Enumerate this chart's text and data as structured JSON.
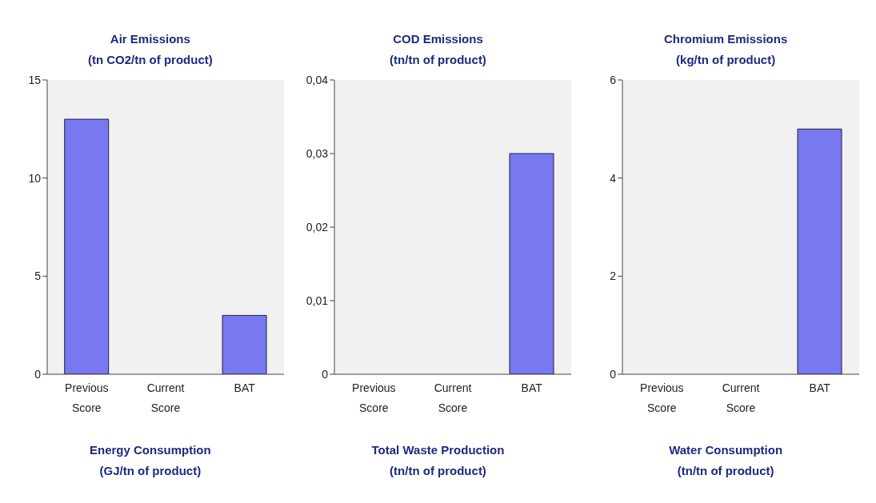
{
  "chart_data": [
    {
      "type": "bar",
      "title": "Air Emissions",
      "subtitle": "(tn CO2/tn of product)",
      "categories": [
        "Previous Score",
        "Current Score",
        "BAT"
      ],
      "values": [
        13,
        null,
        3
      ],
      "color": "#7878f0",
      "ylim": [
        0,
        15
      ],
      "yticks": [
        0,
        5,
        10,
        15
      ],
      "grid": false,
      "legend": false
    },
    {
      "type": "bar",
      "title": "COD Emissions",
      "subtitle": "(tn/tn of product)",
      "categories": [
        "Previous Score",
        "Current Score",
        "BAT"
      ],
      "values": [
        null,
        null,
        0.03
      ],
      "color": "#7878f0",
      "ylim": [
        0,
        0.04
      ],
      "yticks": [
        {
          "value": 0,
          "label": "0"
        },
        {
          "value": 0.01,
          "label": "0,01"
        },
        {
          "value": 0.02,
          "label": "0,02"
        },
        {
          "value": 0.03,
          "label": "0,03"
        },
        {
          "value": 0.04,
          "label": "0,04"
        }
      ],
      "grid": false,
      "legend": false
    },
    {
      "type": "bar",
      "title": "Chromium Emissions",
      "subtitle": "(kg/tn of product)",
      "categories": [
        "Previous Score",
        "Current Score",
        "BAT"
      ],
      "values": [
        null,
        null,
        5
      ],
      "color": "#7878f0",
      "ylim": [
        0,
        6
      ],
      "yticks": [
        0,
        2,
        4,
        6
      ],
      "grid": false,
      "legend": false
    },
    {
      "type": "other",
      "title": "Energy Consumption",
      "subtitle": "(GJ/tn of product)"
    },
    {
      "type": "other",
      "title": "Total Waste Production",
      "subtitle": "(tn/tn of product)"
    },
    {
      "type": "other",
      "title": "Water Consumption",
      "subtitle": "(tn/tn of product)"
    }
  ]
}
